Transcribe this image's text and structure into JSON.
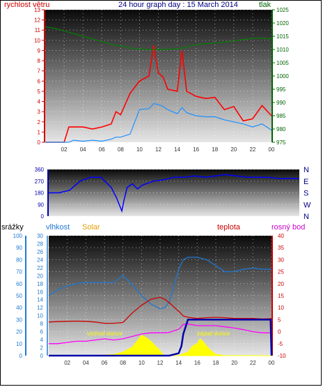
{
  "page": {
    "title": "24 hour graph day : 15 March 2014",
    "colors": {
      "wind_speed": "#ff0000",
      "wind_gust": "#1e90ff",
      "pressure": "#008000",
      "direction": "#0000ff",
      "humidity": "#1e78d2",
      "solar": "#ffff00",
      "temperature": "#cc0000",
      "dew_point": "#ff00ff",
      "rain": "#0000aa"
    }
  },
  "chart_data": [
    {
      "type": "line",
      "title": "24 hour graph day : 15 March 2014",
      "ylabel": "rychlost větru",
      "y2label": "tlak",
      "x_tick_labels": [
        "02",
        "04",
        "06",
        "08",
        "10",
        "12",
        "14",
        "16",
        "18",
        "20",
        "22",
        "00"
      ],
      "ylim": [
        0,
        13
      ],
      "y_ticks": [
        0,
        1,
        2,
        3,
        4,
        5,
        6,
        7,
        8,
        9,
        10,
        11,
        12,
        13
      ],
      "y2lim": [
        975,
        1025
      ],
      "y2_ticks": [
        975,
        980,
        985,
        990,
        995,
        1000,
        1005,
        1010,
        1015,
        1020,
        1025
      ],
      "grid": true,
      "x_hours": [
        0,
        1,
        2,
        2.5,
        3,
        4,
        5,
        6,
        7,
        7.5,
        8,
        9,
        10,
        11,
        11.5,
        12,
        12.5,
        13,
        14,
        14.5,
        15,
        16,
        17,
        18,
        19,
        20,
        21,
        22,
        23,
        24
      ],
      "series": [
        {
          "key": "wind_speed",
          "axis": "left",
          "values": [
            0,
            0,
            0,
            1.5,
            1.5,
            1.5,
            1.3,
            1.5,
            1.8,
            3,
            2.7,
            4.8,
            6,
            6.5,
            9.5,
            6.8,
            6.4,
            5.2,
            5,
            9,
            5,
            4.5,
            4.3,
            4.4,
            3.2,
            3.5,
            2.1,
            2.3,
            3.6,
            2.6
          ]
        },
        {
          "key": "wind_gust",
          "axis": "left",
          "values": [
            0,
            0,
            0,
            0,
            0.2,
            0.1,
            0.2,
            0.1,
            0.3,
            0.5,
            0.5,
            0.8,
            3.2,
            3.3,
            3.8,
            3.7,
            3.5,
            3.2,
            2.8,
            3.4,
            2.9,
            2.6,
            2.5,
            2.5,
            2.2,
            2,
            1.8,
            1.5,
            1.8,
            1.2
          ]
        },
        {
          "key": "pressure",
          "axis": "right",
          "values": [
            1018.5,
            1018,
            1017,
            1016.5,
            1016,
            1015,
            1014,
            1013,
            1012,
            1011.5,
            1011.5,
            1010.5,
            1010.2,
            1010,
            1010,
            1010,
            1010,
            1010.1,
            1010.3,
            1010.5,
            1011,
            1011.8,
            1012.2,
            1012.5,
            1012.8,
            1013.2,
            1013.8,
            1014.2,
            1014.3,
            1014
          ]
        }
      ]
    },
    {
      "type": "line",
      "series_key": "direction",
      "ylim": [
        0,
        360
      ],
      "y_ticks": [
        0,
        90,
        180,
        270,
        360
      ],
      "y2_labels": [
        "N",
        "W",
        "S",
        "E",
        "N"
      ],
      "x_hours": [
        0,
        1,
        1.5,
        2,
        3,
        4,
        5,
        6,
        6.5,
        7,
        7.2,
        7.5,
        8,
        8.5,
        9,
        10,
        11,
        12,
        13,
        14,
        15,
        16,
        17,
        18,
        19,
        20,
        21,
        22,
        23,
        24
      ],
      "values": [
        180,
        180,
        190,
        200,
        270,
        300,
        300,
        220,
        140,
        40,
        120,
        220,
        250,
        210,
        240,
        270,
        280,
        300,
        300,
        310,
        300,
        310,
        320,
        310,
        300,
        300,
        300,
        290,
        290,
        290
      ]
    },
    {
      "type": "line",
      "ylabel": "srážky",
      "y2label": "vlhkost",
      "y3label": "Solar",
      "y4label": "teplota",
      "y5label": "rosný bod",
      "x_tick_labels": [
        "02",
        "04",
        "06",
        "08",
        "10",
        "12",
        "14",
        "16",
        "18",
        "20",
        "22",
        "00"
      ],
      "rain_ticks": [
        0,
        10,
        20,
        30,
        40,
        50,
        60,
        70,
        80,
        90,
        100
      ],
      "humidity_ticks": [
        0,
        2,
        4,
        6,
        8,
        10,
        12,
        14,
        16,
        18,
        20,
        22,
        24,
        26,
        28,
        30
      ],
      "temp_ticks": [
        -10,
        -5,
        0,
        5,
        10,
        15,
        20,
        25,
        30,
        35,
        40
      ],
      "temp_lim": [
        -10,
        40
      ],
      "rain_lim": [
        0,
        100
      ],
      "annotations": [
        "východ slunce",
        "západ slunce"
      ],
      "grid": true,
      "x_hours": [
        0,
        1,
        2,
        3,
        4,
        5,
        6,
        7,
        8,
        9,
        10,
        11,
        12,
        12.5,
        13,
        14,
        14.5,
        15,
        16,
        17,
        18,
        19,
        20,
        21,
        22,
        23,
        24
      ],
      "series": [
        {
          "key": "humidity",
          "axis": "rain",
          "values": [
            50,
            55,
            58,
            60,
            61,
            61,
            61,
            61,
            67,
            59,
            50,
            43,
            39,
            40,
            45,
            72,
            80,
            82,
            82,
            80,
            75,
            70,
            70,
            72,
            73,
            72,
            72
          ]
        },
        {
          "key": "temperature",
          "axis": "temp",
          "values": [
            4,
            4.2,
            4.3,
            4.4,
            4.3,
            4,
            3.5,
            3.5,
            3.8,
            7.8,
            11,
            13.5,
            14.3,
            13.5,
            12,
            8.5,
            6.5,
            6,
            5.5,
            5.8,
            6,
            5.8,
            5.5,
            5.5,
            5.5,
            5.3,
            5.4
          ]
        },
        {
          "key": "dew_point",
          "axis": "temp",
          "values": [
            -5,
            -5,
            -4.5,
            -4,
            -4,
            -3.5,
            -3,
            -3.5,
            -3,
            -2,
            -1,
            -0.5,
            -0.5,
            -0.5,
            -0.3,
            1,
            3,
            3.2,
            2.5,
            2.5,
            2.5,
            2,
            1.5,
            0.8,
            0,
            -0.5,
            -0.5
          ]
        },
        {
          "key": "solar",
          "axis": "rain",
          "x_hours": [
            0,
            5,
            6,
            7,
            8,
            9,
            9.5,
            10,
            10.5,
            11,
            11.5,
            12,
            12.3,
            12.6,
            13,
            14,
            15,
            15.5,
            16,
            16.3,
            16.6,
            17,
            17.5,
            18,
            19,
            20,
            24
          ],
          "values": [
            0,
            0,
            0.5,
            1,
            3,
            7,
            12,
            17,
            15,
            12,
            8,
            4,
            1,
            0,
            0,
            0,
            3,
            8,
            10,
            14,
            12,
            8,
            4,
            1,
            0,
            0,
            0
          ]
        },
        {
          "key": "rain",
          "axis": "rain",
          "x_hours": [
            0,
            12.5,
            13,
            14,
            14.3,
            14.5,
            15,
            16,
            17,
            18,
            19,
            20,
            21,
            22,
            23,
            23.9,
            24
          ],
          "values": [
            0,
            0,
            0,
            2,
            8,
            18,
            30,
            30,
            30,
            30,
            30,
            30,
            30,
            30,
            30,
            30,
            0
          ]
        }
      ]
    }
  ]
}
